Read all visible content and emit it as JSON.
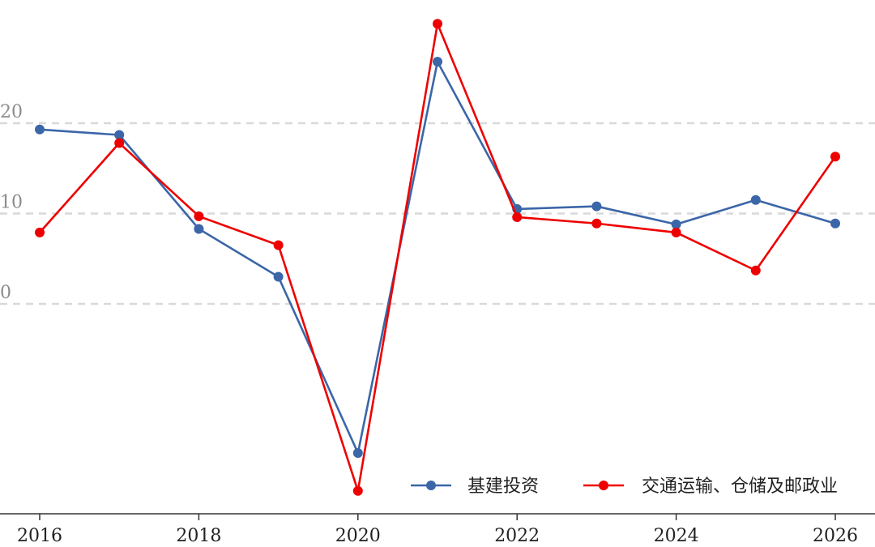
{
  "chart_data": {
    "type": "line",
    "x": [
      2016,
      2017,
      2018,
      2019,
      2020,
      2021,
      2022,
      2023,
      2024,
      2025,
      2026
    ],
    "series": [
      {
        "name": "基建投资",
        "color": "#3b66a8",
        "values": [
          19.3,
          18.7,
          8.3,
          3.0,
          -16.5,
          26.8,
          10.5,
          10.8,
          8.8,
          11.5,
          8.9
        ]
      },
      {
        "name": "交通运输、仓储及邮政业",
        "color": "#ee0000",
        "values": [
          7.9,
          17.8,
          9.7,
          6.5,
          -20.7,
          31.0,
          9.6,
          8.9,
          7.9,
          3.7,
          16.3
        ]
      }
    ],
    "x_ticks": [
      "2016",
      "2018",
      "2020",
      "2022",
      "2024",
      "2026"
    ],
    "y_ticks": [
      "0",
      "10",
      "20"
    ],
    "xlim": [
      2016,
      2026
    ],
    "ylim": [
      -23,
      34
    ],
    "grid": "horizontal dashed",
    "legend": "bottom-right"
  }
}
